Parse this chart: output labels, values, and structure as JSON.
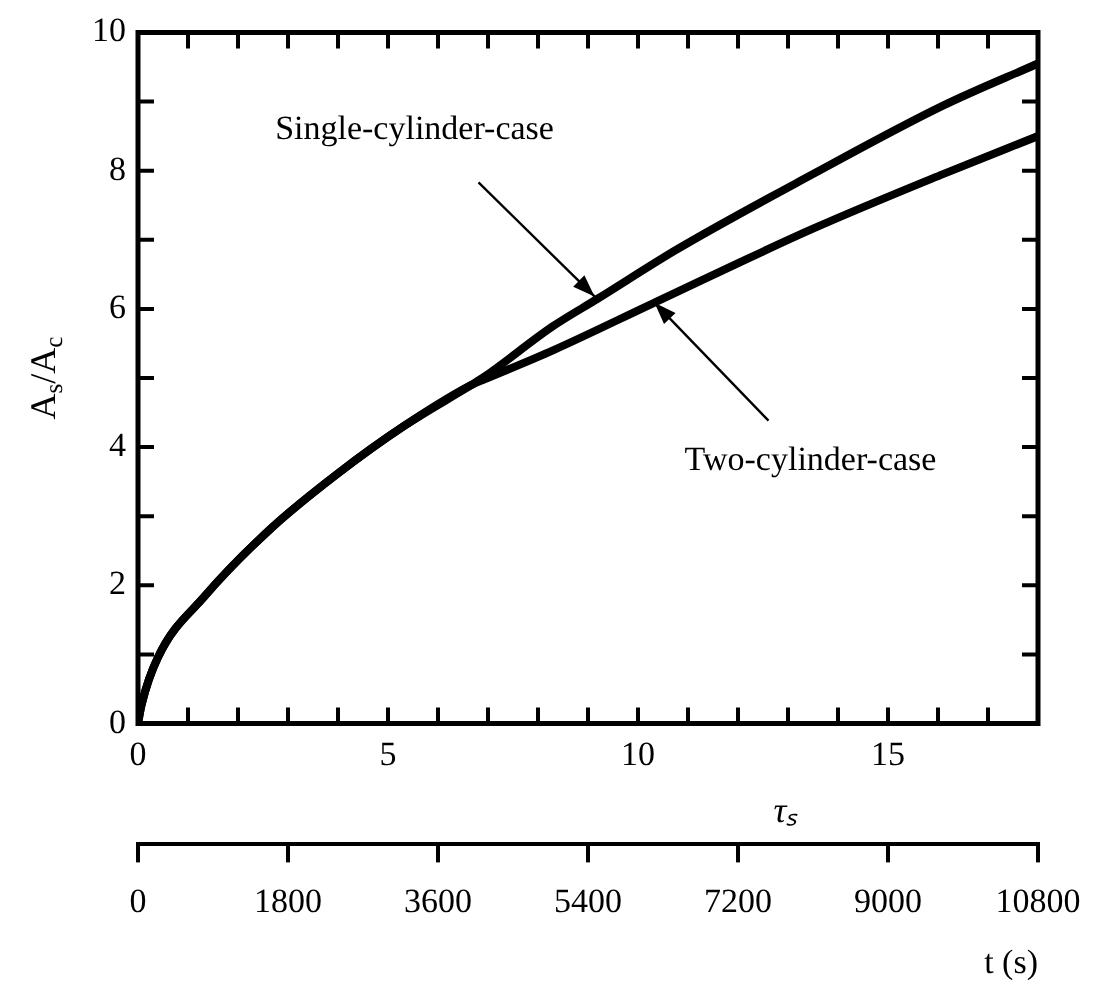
{
  "chart_data": {
    "type": "line",
    "xlabel": "τₛ",
    "ylabel": "A$_{s}$/A$_{c}$",
    "x2label": "t (s)",
    "xlim": [
      0,
      18
    ],
    "xticks": [
      0,
      {
        "value": 1,
        "label": null
      },
      {
        "value": 2,
        "label": null
      },
      {
        "value": 3,
        "label": null
      },
      {
        "value": 4,
        "label": null
      },
      5,
      {
        "value": 6,
        "label": null
      },
      {
        "value": 7,
        "label": null
      },
      {
        "value": 8,
        "label": null
      },
      {
        "value": 9,
        "label": null
      },
      10,
      {
        "value": 11,
        "label": null
      },
      {
        "value": 12,
        "label": null
      },
      {
        "value": 13,
        "label": null
      },
      {
        "value": 14,
        "label": null
      },
      15,
      {
        "value": 16,
        "label": null
      },
      {
        "value": 17,
        "label": null
      },
      {
        "value": 18,
        "label": null
      }
    ],
    "x2lim": [
      0,
      10800
    ],
    "x2ticks": [
      0,
      1800,
      3600,
      5400,
      7200,
      9000,
      10800
    ],
    "ylim": [
      0,
      10
    ],
    "yticks": [
      0,
      {
        "value": 1,
        "label": null
      },
      2,
      {
        "value": 3,
        "label": null
      },
      4,
      {
        "value": 5,
        "label": null
      },
      6,
      {
        "value": 7,
        "label": null
      },
      8,
      {
        "value": 9,
        "label": null
      },
      10
    ],
    "marker": "none",
    "grid": false,
    "legend": false,
    "series": [
      {
        "color": "#000000",
        "x": [
          0,
          0.07,
          0.4,
          1.33,
          2.67,
          4,
          5.33,
          6.67,
          6.93,
          8.3,
          9.2,
          10.8,
          13.5,
          16.1,
          18
        ],
        "values": [
          0,
          0.27,
          0.96,
          1.84,
          2.83,
          3.62,
          4.31,
          4.9,
          5.02,
          5.75,
          6.15,
          6.87,
          7.95,
          8.94,
          9.55
        ]
      },
      {
        "color": "#000000",
        "x": [
          0,
          0.07,
          0.4,
          1.33,
          2.67,
          4,
          5.33,
          6.67,
          6.93,
          8.3,
          10.3,
          13.5,
          16.1,
          18
        ],
        "values": [
          0,
          0.27,
          0.96,
          1.84,
          2.83,
          3.62,
          4.31,
          4.9,
          4.98,
          5.4,
          6.08,
          7.16,
          7.95,
          8.5
        ]
      }
    ],
    "annotations": [
      {
        "text": "Single-cylinder-case",
        "x": 9.13,
        "y": 6.18
      },
      {
        "text": "Two-cylinder-case",
        "x": 10.33,
        "y": 6.09
      }
    ]
  }
}
